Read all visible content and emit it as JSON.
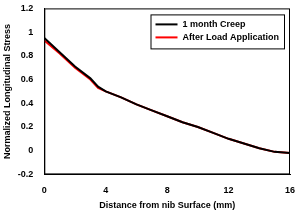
{
  "chart_data": {
    "type": "line",
    "x_label": "Distance from nib Surface (mm)",
    "y_label": "Normalized Longitudinal Stress",
    "x": [
      0,
      1,
      2,
      3,
      3.5,
      4,
      5,
      6,
      7,
      8,
      9,
      10,
      11,
      12,
      13,
      14,
      15,
      16
    ],
    "series": [
      {
        "name": "1 month Creep",
        "color": "#000000",
        "values": [
          0.95,
          0.83,
          0.71,
          0.61,
          0.54,
          0.5,
          0.45,
          0.39,
          0.34,
          0.29,
          0.24,
          0.2,
          0.15,
          0.1,
          0.06,
          0.02,
          -0.01,
          -0.02
        ]
      },
      {
        "name": "After Load Application",
        "color": "#ff0000",
        "values": [
          0.93,
          0.82,
          0.7,
          0.6,
          0.53,
          0.5,
          0.45,
          0.39,
          0.34,
          0.29,
          0.24,
          0.2,
          0.15,
          0.1,
          0.06,
          0.02,
          -0.01,
          -0.02
        ]
      }
    ],
    "xlim": [
      0,
      16
    ],
    "xticks": [
      0,
      4,
      8,
      12,
      16
    ],
    "ylim": [
      -0.2,
      1.2
    ],
    "yticks": [
      -0.2,
      0,
      0.2,
      0.4,
      0.6,
      0.8,
      1,
      1.2
    ],
    "grid": false,
    "legend": "upper right"
  }
}
